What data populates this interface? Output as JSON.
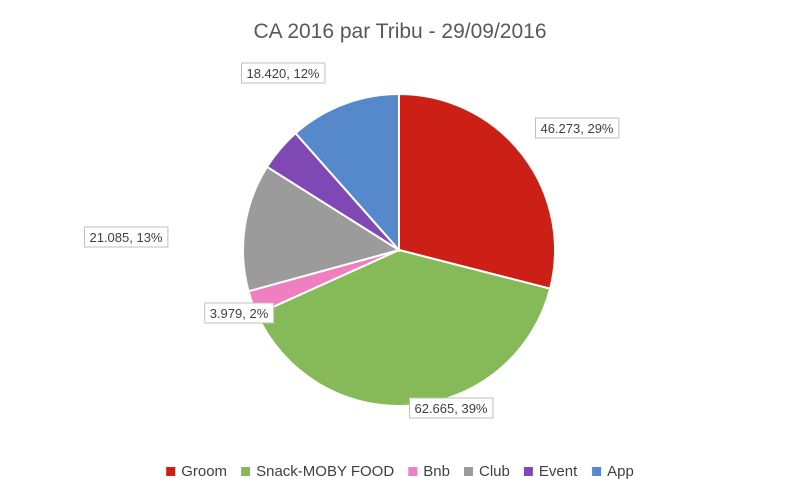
{
  "chart_data": {
    "type": "pie",
    "title": "CA 2016 par Tribu - 29/09/2016",
    "categories": [
      "Groom",
      "Snack-MOBY FOOD",
      "Bnb",
      "Club",
      "Event",
      "App"
    ],
    "values": [
      46.273,
      62.665,
      3.979,
      21.085,
      7.2,
      18.42
    ],
    "data_labels": [
      "46.273, 29%",
      "62.665, 39%",
      "3.979, 2%",
      "21.085, 13%",
      "",
      "18.420, 12%"
    ],
    "colors": [
      "#cc2016",
      "#86ba59",
      "#ef7fbe",
      "#9b9b9b",
      "#8048b4",
      "#5589cc"
    ],
    "legend_position": "bottom",
    "start_angle_deg": 0,
    "direction": "clockwise"
  }
}
